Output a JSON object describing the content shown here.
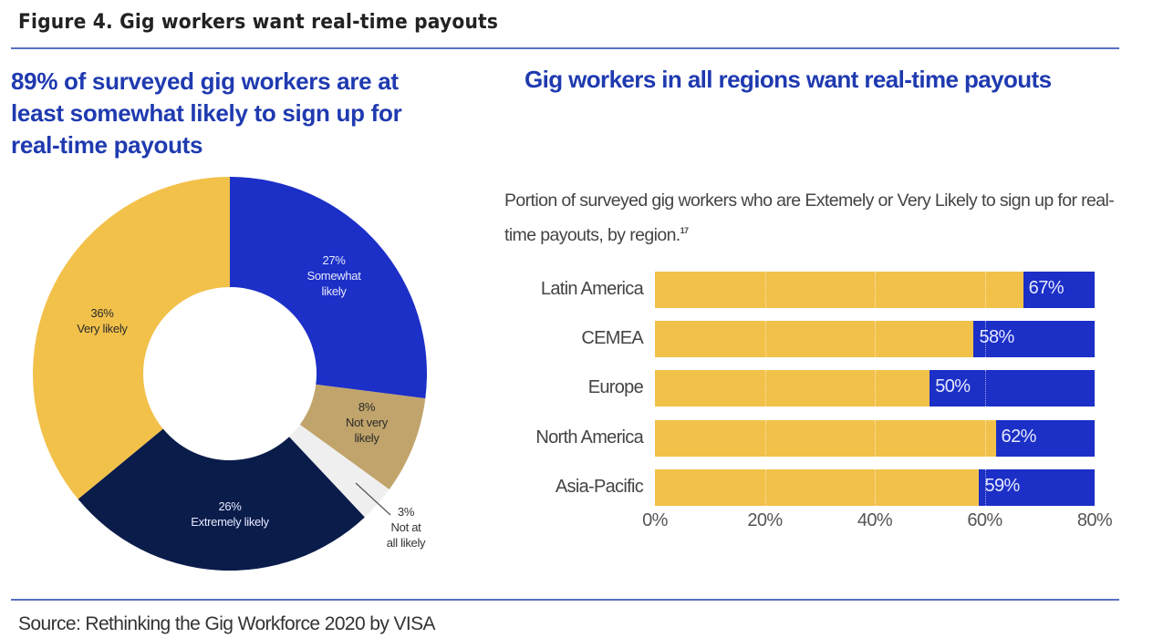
{
  "figure": {
    "title": "Figure 4. Gig workers want real-time payouts",
    "source": "Source: Rethinking the Gig Workforce 2020 by VISA"
  },
  "left_panel": {
    "headline": "89% of surveyed gig workers are at least somewhat likely to sign up for real-time payouts"
  },
  "right_panel": {
    "headline": "Gig workers in all regions want real-time payouts",
    "subtitle": "Portion of surveyed gig workers who are Extemely or Very Likely to sign up for real-time payouts, by region.",
    "footnote": "17"
  },
  "colors": {
    "headline_blue": "#1f3ab0",
    "rule_blue": "#5a70c4",
    "yellow": "#f2c14a",
    "blue": "#1c2fc7",
    "navy": "#0a1c4a",
    "tan": "#c1a46b",
    "light_gray": "#efefef"
  },
  "chart_data": [
    {
      "type": "pie",
      "variant": "donut",
      "title": "89% of surveyed gig workers are at least somewhat likely to sign up for real-time payouts",
      "slices": [
        {
          "label": "Somewhat likely",
          "value": 27,
          "display": "27%",
          "color": "#1c2fc7"
        },
        {
          "label": "Not very likely",
          "value": 8,
          "display": "8%",
          "color": "#c1a46b"
        },
        {
          "label": "Not at all likely",
          "value": 3,
          "display": "3%",
          "color": "#efefef"
        },
        {
          "label": "Extremely likely",
          "value": 26,
          "display": "26%",
          "color": "#0a1c4a"
        },
        {
          "label": "Very likely",
          "value": 36,
          "display": "36%",
          "color": "#f2c14a"
        }
      ],
      "start_angle": "12 o'clock",
      "direction": "clockwise"
    },
    {
      "type": "bar",
      "orientation": "horizontal",
      "title": "Gig workers in all regions want real-time payouts",
      "subtitle": "Portion of surveyed gig workers who are Extemely or Very Likely to sign up for real-time payouts, by region.",
      "categories": [
        "Latin America",
        "CEMEA",
        "Europe",
        "North America",
        "Asia-Pacific"
      ],
      "values": [
        67,
        58,
        50,
        62,
        59
      ],
      "value_labels": [
        "67%",
        "58%",
        "50%",
        "62%",
        "59%"
      ],
      "xlim": [
        0,
        80
      ],
      "xticks": [
        "0%",
        "20%",
        "40%",
        "60%",
        "80%"
      ],
      "xlabel": "",
      "ylabel": "",
      "grid": "vertical dotted",
      "legend": "none",
      "bar_color": "#f2c14a",
      "background_track_color": "#1c2fc7"
    }
  ]
}
